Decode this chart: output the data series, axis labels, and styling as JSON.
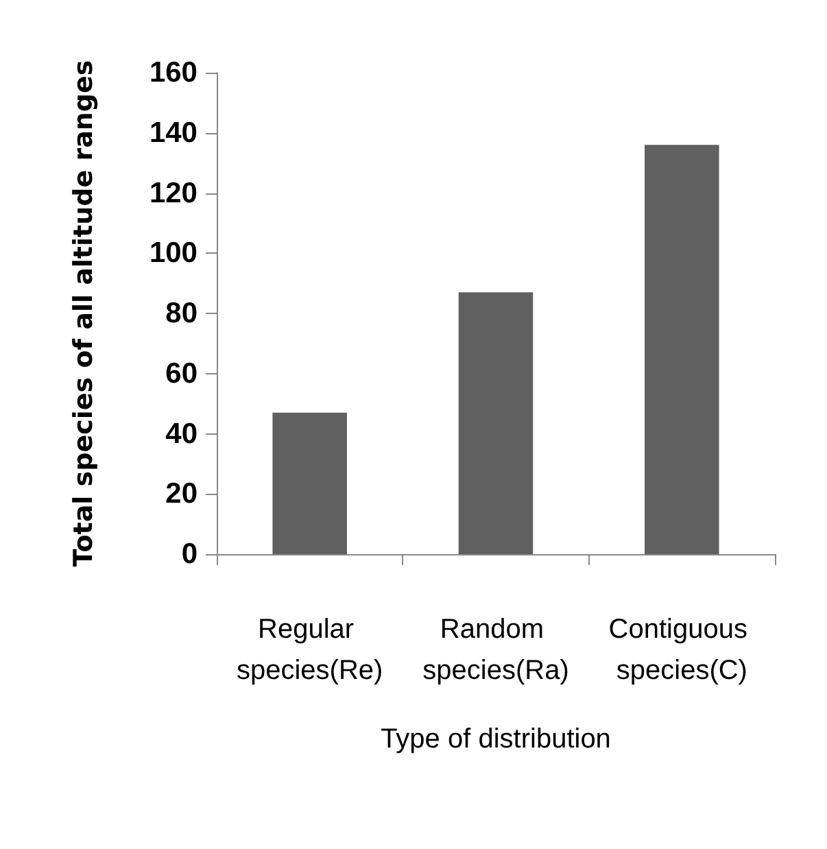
{
  "chart_data": {
    "type": "bar",
    "xlabel": "Type of distribution",
    "ylabel": "Total species of all altitude ranges",
    "categories": [
      "Regular species(Re)",
      "Random species(Ra)",
      "Contiguous species(C)"
    ],
    "values": [
      47,
      87,
      136
    ],
    "color": "#606060",
    "ylim": [
      0,
      160
    ],
    "yticks": [
      0,
      20,
      40,
      60,
      80,
      100,
      120,
      140,
      160
    ],
    "grid": false
  }
}
